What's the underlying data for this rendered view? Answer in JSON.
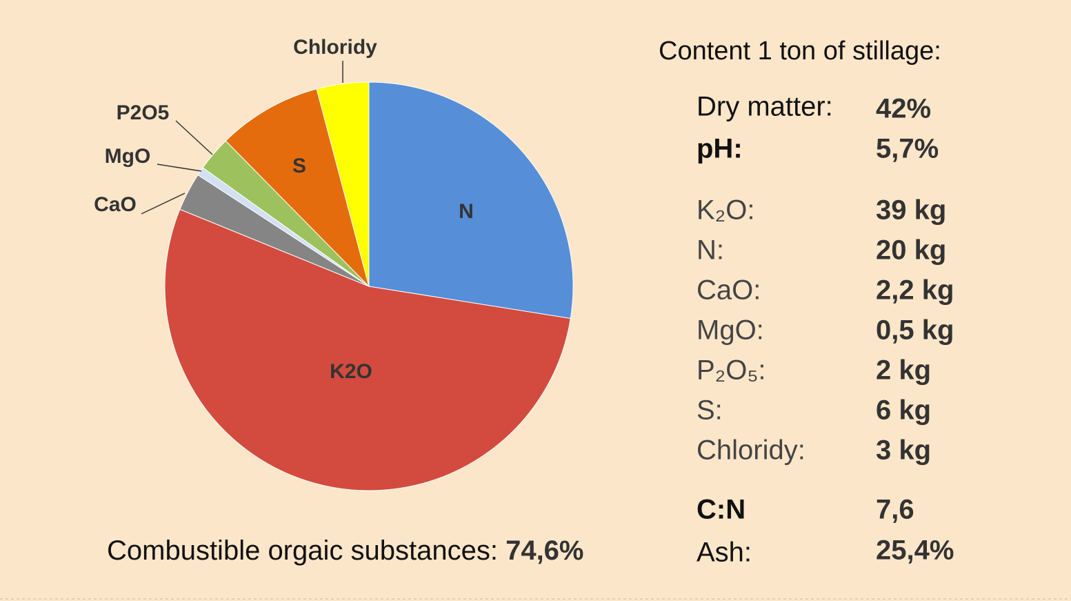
{
  "chart_data": {
    "type": "pie",
    "categories": [
      "N",
      "K2O",
      "CaO",
      "MgO",
      "P2O5",
      "S",
      "Chloridy"
    ],
    "values": [
      20,
      39,
      2.2,
      0.5,
      2,
      6,
      3
    ],
    "colors": [
      "#568ed8",
      "#d34b3e",
      "#858585",
      "#d3e0f2",
      "#9dc15c",
      "#e46c0c",
      "#ffff00"
    ]
  },
  "footer": {
    "label": "Combustible orgaic substances:",
    "value": "74,6%"
  },
  "content": {
    "title": "Content 1 ton of stillage:",
    "rows": [
      [
        "Dry matter:",
        "42%"
      ],
      [
        "pH:",
        "5,7%"
      ],
      [
        "K₂O:",
        "39 kg"
      ],
      [
        "N:",
        "20 kg"
      ],
      [
        "CaO:",
        "2,2 kg"
      ],
      [
        "MgO:",
        "0,5 kg"
      ],
      [
        "P₂O₅:",
        "2 kg"
      ],
      [
        "S:",
        "6 kg"
      ],
      [
        "Chloridy:",
        "3 kg"
      ],
      [
        "C:N",
        "7,6"
      ],
      [
        "Ash:",
        "25,4%"
      ]
    ]
  }
}
